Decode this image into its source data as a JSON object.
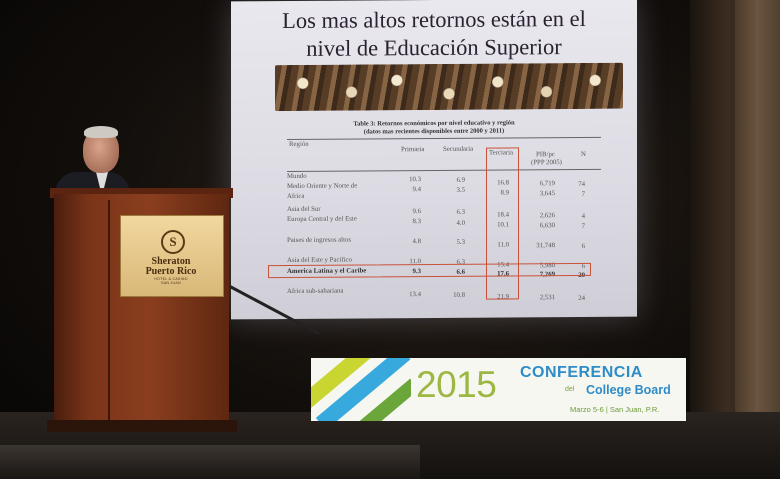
{
  "slide": {
    "title_line1": "Los mas altos retornos están en el",
    "title_line2": "nivel de Educación Superior",
    "table_caption_line1": "Table 3: Retornos económicos por nivel educativo y región",
    "table_caption_line2": "(datos mas recientes disponibles entre 2000 y 2011)",
    "headers": {
      "region": "Región",
      "primaria": "Primaria",
      "secundaria": "Secundaria",
      "terciaria": "Terciaria",
      "pib1": "PIB/pc",
      "pib2": "(PPP 2005)",
      "n": "N"
    },
    "rows": [
      {
        "region": "Mundo",
        "primaria": "10.3",
        "secundaria": "6.9",
        "terciaria": "16.8",
        "pib": "6,719",
        "n": "74"
      },
      {
        "region": "Medio Oriente y Norte de",
        "primaria": "9.4",
        "secundaria": "3.5",
        "terciaria": "8.9",
        "pib": "3,645",
        "n": "7"
      },
      {
        "region": "Africa",
        "primaria": "",
        "secundaria": "",
        "terciaria": "",
        "pib": "",
        "n": ""
      },
      {
        "region": "Asia del Sur",
        "primaria": "9.6",
        "secundaria": "6.3",
        "terciaria": "18.4",
        "pib": "2,626",
        "n": "4"
      },
      {
        "region": "Europa Central y del Este",
        "primaria": "8.3",
        "secundaria": "4.0",
        "terciaria": "10.1",
        "pib": "6,630",
        "n": "7"
      },
      {
        "region": "Paises de ingresos altos",
        "primaria": "4.8",
        "secundaria": "5.3",
        "terciaria": "11.0",
        "pib": "31,748",
        "n": "6"
      },
      {
        "region": "Asia del Este y Pacifico",
        "primaria": "11.0",
        "secundaria": "6.3",
        "terciaria": "15.4",
        "pib": "5,980",
        "n": "6"
      },
      {
        "region": "America Latina y el Caribe",
        "primaria": "9.3",
        "secundaria": "6.6",
        "terciaria": "17.6",
        "pib": "7,269",
        "n": "20"
      },
      {
        "region": "Africa sub-sahariana",
        "primaria": "13.4",
        "secundaria": "10.8",
        "terciaria": "21.9",
        "pib": "2,531",
        "n": "24"
      }
    ]
  },
  "podium": {
    "emblem": "S",
    "brand_line1": "Sheraton",
    "brand_line2": "Puerto Rico",
    "sub_line1": "HOTEL & CASINO",
    "sub_line2": "SAN JUAN"
  },
  "logo": {
    "year": "2015",
    "conferencia": "CONFERENCIA",
    "del": "del",
    "college_board": "College Board",
    "dates": "Marzo 5-6  |  San Juan, P.R.",
    "colors": {
      "green": "#9cb843",
      "blue": "#2e8cc8",
      "lime": "#c9d530"
    }
  },
  "accent_colors": {
    "highlight_box": "#c9523a",
    "podium_wood": "#7a3418"
  }
}
